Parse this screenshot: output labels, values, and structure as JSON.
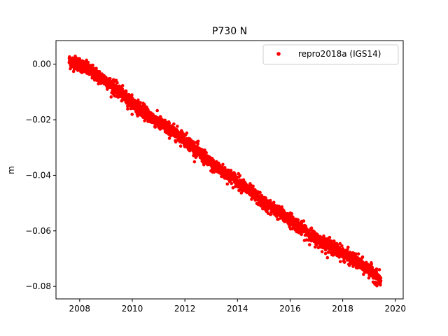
{
  "chart_data": {
    "type": "scatter",
    "title": "P730 N",
    "xlabel": "",
    "ylabel": "m",
    "xlim": [
      2007.1,
      2020.3
    ],
    "ylim": [
      -0.0845,
      0.0085
    ],
    "x_ticks": [
      2008,
      2010,
      2012,
      2014,
      2016,
      2018,
      2020
    ],
    "x_tick_labels": [
      "2008",
      "2010",
      "2012",
      "2014",
      "2016",
      "2018",
      "2020"
    ],
    "y_ticks": [
      0.0,
      -0.02,
      -0.04,
      -0.06,
      -0.08
    ],
    "y_tick_labels": [
      "0.00",
      "−0.02",
      "−0.04",
      "−0.06",
      "−0.08"
    ],
    "grid": false,
    "legend_position": "top-right",
    "series": [
      {
        "name": "repro2018a (IGS14)",
        "color": "#ff0000",
        "marker": "circle",
        "x_range": [
          2007.6,
          2019.45
        ],
        "trend_points": [
          {
            "x": 2007.6,
            "y": 0.001
          },
          {
            "x": 2008.0,
            "y": 0.0
          },
          {
            "x": 2009.0,
            "y": -0.006
          },
          {
            "x": 2010.0,
            "y": -0.014
          },
          {
            "x": 2011.0,
            "y": -0.021
          },
          {
            "x": 2012.0,
            "y": -0.027
          },
          {
            "x": 2013.0,
            "y": -0.036
          },
          {
            "x": 2014.0,
            "y": -0.042
          },
          {
            "x": 2015.0,
            "y": -0.05
          },
          {
            "x": 2016.0,
            "y": -0.056
          },
          {
            "x": 2017.0,
            "y": -0.063
          },
          {
            "x": 2018.0,
            "y": -0.068
          },
          {
            "x": 2019.0,
            "y": -0.074
          },
          {
            "x": 2019.45,
            "y": -0.078
          }
        ],
        "scatter_spread": 0.0022
      }
    ]
  }
}
